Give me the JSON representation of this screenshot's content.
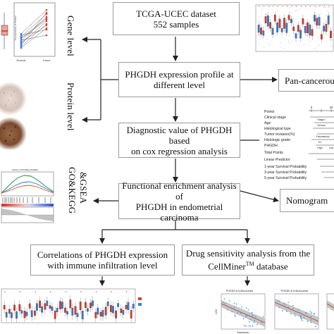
{
  "nodes": {
    "dataset": {
      "line1": "TCGA-UCEC dataset",
      "line2": "552 samples"
    },
    "expression": {
      "line1": "PHGDH expression profile at",
      "line2": "different level"
    },
    "diagnostic": {
      "line1": "Diagnostic value of PHGDH based",
      "line2": "on cox regression analysis"
    },
    "enrichment": {
      "line1": "Functional enrichment analysis of",
      "line2": "PHGDH in endometrial carcinoma"
    },
    "immune": {
      "line1": "Correlations of PHGDH expression",
      "line2": "with immune infiltration level"
    },
    "drug": {
      "line1": "Drug sensitivity analysis  from the",
      "line2_prefix": "CellMiner",
      "line2_sup": "TM",
      "line2_suffix": " database"
    },
    "pancancer": {
      "label": "Pan-cancerous"
    },
    "nomogram": {
      "label": "Nomogram"
    }
  },
  "side_labels": {
    "gene": "Gene level",
    "protein": "Protein level",
    "go": "GO&KEGG",
    "gsea": "&GSEA"
  },
  "nomogram_rows": [
    "Points",
    "Clinical stage",
    "Age",
    "Histological type",
    "Tumor invasion(%)",
    "Histologic grade",
    "PHGDH",
    "Total Points",
    "Linear Predictor",
    "1-year Survival Probability",
    "3-year Survival Probability",
    "5-year Survival Probability"
  ],
  "nomogram_annotations": {
    "tick_0": "0",
    "tick_20": "20",
    "stage": "Stage I",
    "histology": "Serous",
    "type": "Endometrioid",
    "grade": "G1",
    "phgdh": "High",
    "phgdh_low": "Low"
  },
  "thumb_texts": {
    "gene_plot_caption": "The expression of PHGDH",
    "gene_x_normal": "Normal",
    "gene_x_tumor": "Tumor",
    "corr1_title": "PHGDH & 5-fluorouracil",
    "corr2_title": "PHGDH & 5-fluorouracil",
    "corr_r": "R=-0.4",
    "corr_xlabel": "Expression",
    "corr_ylabel": "IC50",
    "gsea_title": "KEGG_LYSOSOME_PATHWAY"
  },
  "colors": {
    "box_border": "#9a9a9a",
    "arrow": "#222222",
    "normal_group": "#3b7dd8",
    "tumor_group": "#e03a2f",
    "regression_band": "#b8b8b8",
    "scatter_point": "#4aa3df"
  }
}
